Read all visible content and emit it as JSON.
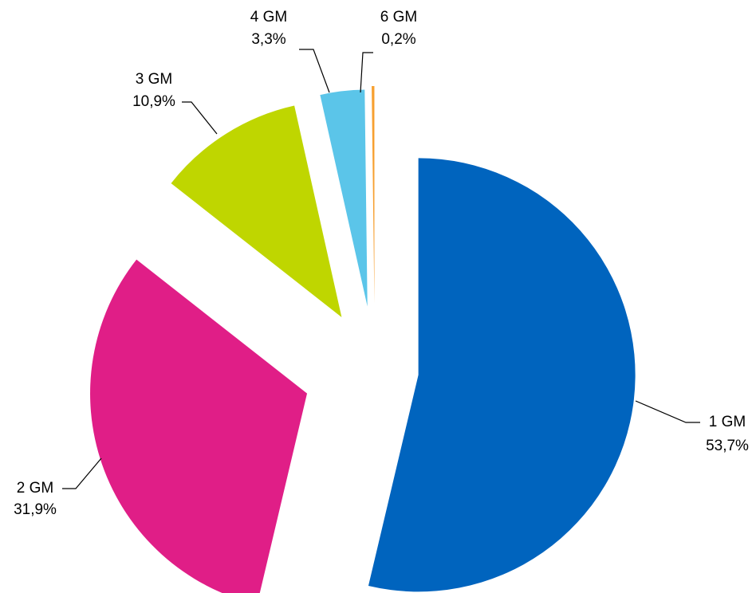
{
  "chart_data": {
    "type": "pie",
    "categories": [
      "1 GM",
      "2 GM",
      "3 GM",
      "4 GM",
      "6 GM"
    ],
    "values": [
      53.7,
      31.9,
      10.9,
      3.3,
      0.2
    ],
    "value_labels": [
      "53,7%",
      "31,9%",
      "10,9%",
      "3,3%",
      "0,2%"
    ],
    "colors": [
      "#0064be",
      "#e01e87",
      "#bfd600",
      "#5bc5e9",
      "#f7a030"
    ]
  }
}
